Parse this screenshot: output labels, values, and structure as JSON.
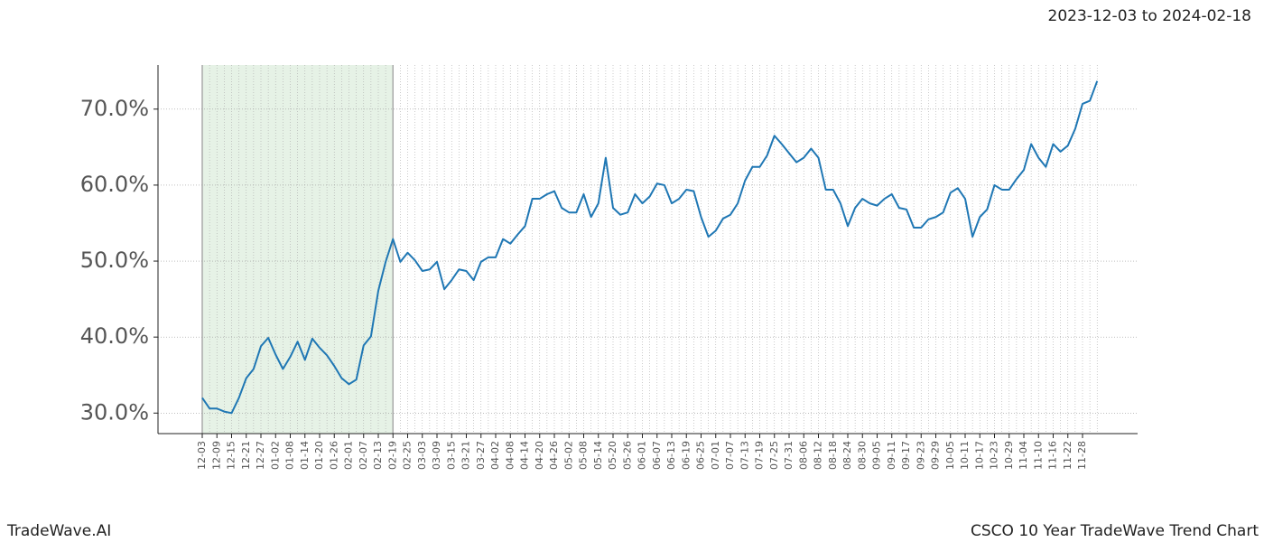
{
  "chart_data": {
    "type": "line",
    "date_range": "2023-12-03 to 2024-02-18",
    "brand": "TradeWave.AI",
    "title": "CSCO 10 Year TradeWave Trend Chart",
    "categories": [
      "12-03",
      null,
      "12-09",
      null,
      "12-15",
      null,
      "12-21",
      null,
      "12-27",
      null,
      "01-02",
      null,
      "01-08",
      null,
      "01-14",
      null,
      "01-20",
      null,
      "01-26",
      null,
      "02-01",
      null,
      "02-07",
      null,
      "02-13",
      null,
      "02-19",
      null,
      "02-25",
      null,
      "03-03",
      null,
      "03-09",
      null,
      "03-15",
      null,
      "03-21",
      null,
      "03-27",
      null,
      "04-02",
      null,
      "04-08",
      null,
      "04-14",
      null,
      "04-20",
      null,
      "04-26",
      null,
      "05-02",
      null,
      "05-08",
      null,
      "05-14",
      null,
      "05-20",
      null,
      "05-26",
      null,
      "06-01",
      null,
      "06-07",
      null,
      "06-13",
      null,
      "06-19",
      null,
      "06-25",
      null,
      "07-01",
      null,
      "07-07",
      null,
      "07-13",
      null,
      "07-19",
      null,
      "07-25",
      null,
      "07-31",
      null,
      "08-06",
      null,
      "08-12",
      null,
      "08-18",
      null,
      "08-24",
      null,
      "08-30",
      null,
      "09-05",
      null,
      "09-11",
      null,
      "09-17",
      null,
      "09-23",
      null,
      "09-29",
      null,
      "10-05",
      null,
      "10-11",
      null,
      "10-17",
      null,
      "10-23",
      null,
      "10-29",
      null,
      "11-04",
      null,
      "11-10",
      null,
      "11-16",
      null,
      "11-22",
      null,
      "11-28",
      null,
      null
    ],
    "series": [
      {
        "color": "#1f77b4",
        "values": [
          32.0,
          30.6,
          30.6,
          30.2,
          30.0,
          32.0,
          34.6,
          35.8,
          38.8,
          39.9,
          37.7,
          35.8,
          37.4,
          39.4,
          37.0,
          39.8,
          38.6,
          37.6,
          36.2,
          34.6,
          33.8,
          34.4,
          38.9,
          40.1,
          46.1,
          49.9,
          52.9,
          49.9,
          51.1,
          50.1,
          48.7,
          48.9,
          49.9,
          46.3,
          47.5,
          48.9,
          48.7,
          47.5,
          49.9,
          50.5,
          50.5,
          52.9,
          52.3,
          53.5,
          54.6,
          58.2,
          58.2,
          58.8,
          59.2,
          57.0,
          56.4,
          56.4,
          58.8,
          55.8,
          57.6,
          63.6,
          57.0,
          56.1,
          56.4,
          58.8,
          57.6,
          58.5,
          60.2,
          60.0,
          57.6,
          58.2,
          59.4,
          59.2,
          55.8,
          53.2,
          54.0,
          55.6,
          56.1,
          57.6,
          60.6,
          62.4,
          62.4,
          63.9,
          66.5,
          65.4,
          64.2,
          63.0,
          63.6,
          64.8,
          63.6,
          59.4,
          59.4,
          57.6,
          54.6,
          57.0,
          58.2,
          57.6,
          57.3,
          58.2,
          58.8,
          57.0,
          56.8,
          54.4,
          54.4,
          55.5,
          55.8,
          56.4,
          59.0,
          59.6,
          58.2,
          53.2,
          55.8,
          56.8,
          60.0,
          59.4,
          59.4,
          60.8,
          62.0,
          65.4,
          63.6,
          62.4,
          65.4,
          64.4,
          65.2,
          67.4,
          70.7,
          71.1,
          73.7
        ]
      }
    ],
    "highlight": {
      "from": "12-03",
      "to": "02-19",
      "color": "#e6f2e6"
    },
    "ylim": [
      27.3,
      75.8
    ],
    "yticks": [
      {
        "value": 30,
        "label": "30.0%"
      },
      {
        "value": 40,
        "label": "40.0%"
      },
      {
        "value": 50,
        "label": "50.0%"
      },
      {
        "value": 60,
        "label": "60.0%"
      },
      {
        "value": 70,
        "label": "70.0%"
      }
    ],
    "grid": true
  }
}
